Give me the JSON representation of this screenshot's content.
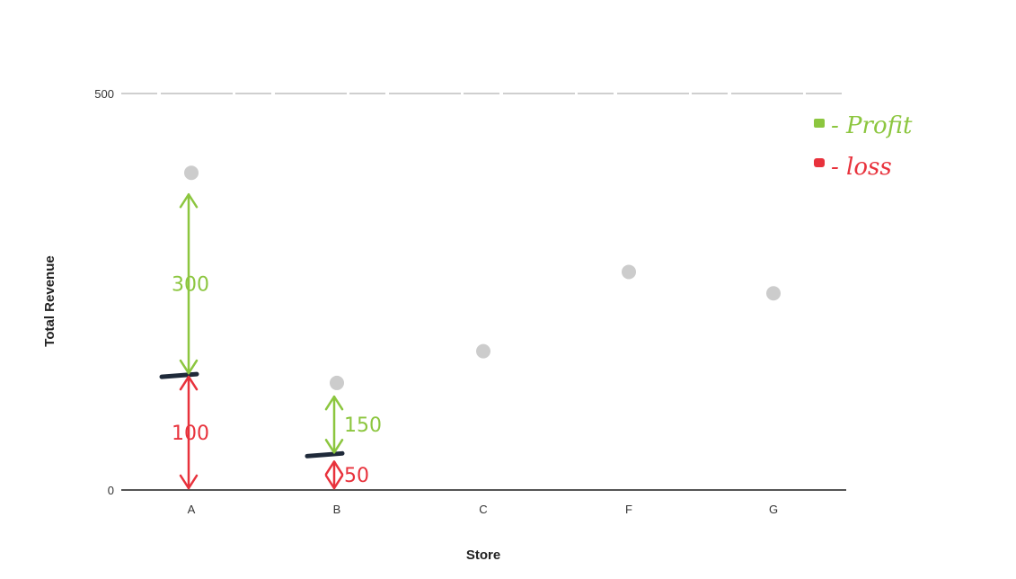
{
  "chart_data": {
    "type": "scatter",
    "xlabel": "Store",
    "ylabel": "Total Revenue",
    "ylim": [
      0,
      500
    ],
    "y_ticks": [
      "0",
      "500"
    ],
    "categories": [
      "A",
      "B",
      "C",
      "F",
      "G"
    ],
    "values": [
      400,
      135,
      175,
      275,
      248
    ],
    "grid": false,
    "point_color": "#cccccc",
    "legend": {
      "placement": "top-right",
      "items": [
        {
          "label": "- Profit",
          "color": "#8cc63f"
        },
        {
          "label": "- loss",
          "color": "#e8323c"
        }
      ]
    },
    "annotations": [
      {
        "store": "A",
        "kind": "cost-line",
        "y": 145
      },
      {
        "store": "A",
        "kind": "profit",
        "from": 145,
        "to": 375,
        "label": "300",
        "color": "#8cc63f"
      },
      {
        "store": "A",
        "kind": "loss",
        "from": 0,
        "to": 145,
        "label": "100",
        "color": "#e8323c"
      },
      {
        "store": "B",
        "kind": "cost-line",
        "y": 45
      },
      {
        "store": "B",
        "kind": "profit",
        "from": 45,
        "to": 120,
        "label": "150",
        "color": "#8cc63f"
      },
      {
        "store": "B",
        "kind": "loss",
        "from": 0,
        "to": 38,
        "label": "50",
        "color": "#e8323c"
      }
    ]
  }
}
